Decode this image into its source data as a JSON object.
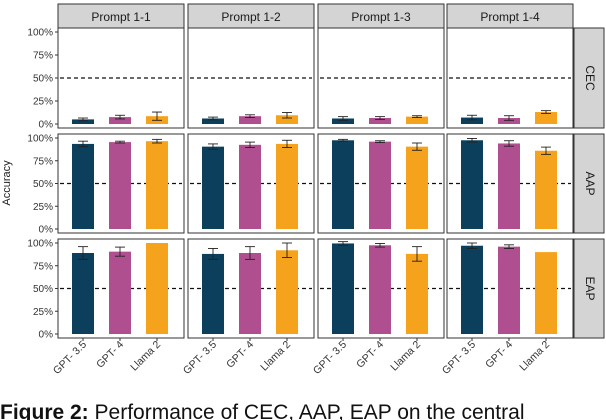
{
  "chart_data": {
    "type": "bar",
    "ylabel": "Accuracy",
    "ylim": [
      0,
      1
    ],
    "yticks": [
      "0%",
      "25%",
      "50%",
      "75%",
      "100%"
    ],
    "reference_line": 0.5,
    "categories": [
      "GPT- 3.5",
      "GPT- 4",
      "Llama 2"
    ],
    "colors": {
      "GPT- 3.5": "#0b3f5c",
      "GPT- 4": "#b04f8f",
      "Llama 2": "#f5a21d"
    },
    "columns": [
      "Prompt 1-1",
      "Prompt 1-2",
      "Prompt 1-3",
      "Prompt 1-4"
    ],
    "rows": [
      "CEC",
      "AAP",
      "EAP"
    ],
    "panels": [
      {
        "row": "CEC",
        "column": "Prompt 1-1",
        "values": [
          0.05,
          0.075,
          0.085
        ],
        "errors": [
          0.015,
          0.02,
          0.045
        ]
      },
      {
        "row": "CEC",
        "column": "Prompt 1-2",
        "values": [
          0.06,
          0.085,
          0.095
        ],
        "errors": [
          0.015,
          0.015,
          0.03
        ]
      },
      {
        "row": "CEC",
        "column": "Prompt 1-3",
        "values": [
          0.06,
          0.065,
          0.08
        ],
        "errors": [
          0.02,
          0.015,
          0.01
        ]
      },
      {
        "row": "CEC",
        "column": "Prompt 1-4",
        "values": [
          0.07,
          0.065,
          0.13
        ],
        "errors": [
          0.025,
          0.025,
          0.015
        ]
      },
      {
        "row": "AAP",
        "column": "Prompt 1-1",
        "values": [
          0.935,
          0.955,
          0.965
        ],
        "errors": [
          0.03,
          0.01,
          0.02
        ]
      },
      {
        "row": "AAP",
        "column": "Prompt 1-2",
        "values": [
          0.905,
          0.925,
          0.935
        ],
        "errors": [
          0.03,
          0.03,
          0.04
        ]
      },
      {
        "row": "AAP",
        "column": "Prompt 1-3",
        "values": [
          0.975,
          0.96,
          0.905
        ],
        "errors": [
          0.01,
          0.01,
          0.04
        ]
      },
      {
        "row": "AAP",
        "column": "Prompt 1-4",
        "values": [
          0.975,
          0.94,
          0.86
        ],
        "errors": [
          0.02,
          0.03,
          0.04
        ]
      },
      {
        "row": "EAP",
        "column": "Prompt 1-1",
        "values": [
          0.89,
          0.905,
          1.0
        ],
        "errors": [
          0.07,
          0.05,
          0.0
        ]
      },
      {
        "row": "EAP",
        "column": "Prompt 1-2",
        "values": [
          0.88,
          0.89,
          0.92
        ],
        "errors": [
          0.06,
          0.07,
          0.08
        ]
      },
      {
        "row": "EAP",
        "column": "Prompt 1-3",
        "values": [
          0.995,
          0.975,
          0.88
        ],
        "errors": [
          0.02,
          0.02,
          0.08
        ]
      },
      {
        "row": "EAP",
        "column": "Prompt 1-4",
        "values": [
          0.97,
          0.96,
          0.9
        ],
        "errors": [
          0.03,
          0.02,
          0.0
        ]
      }
    ]
  },
  "caption": {
    "label": "Figure 2:",
    "text": " Performance of CEC, AAP, EAP on the central"
  }
}
